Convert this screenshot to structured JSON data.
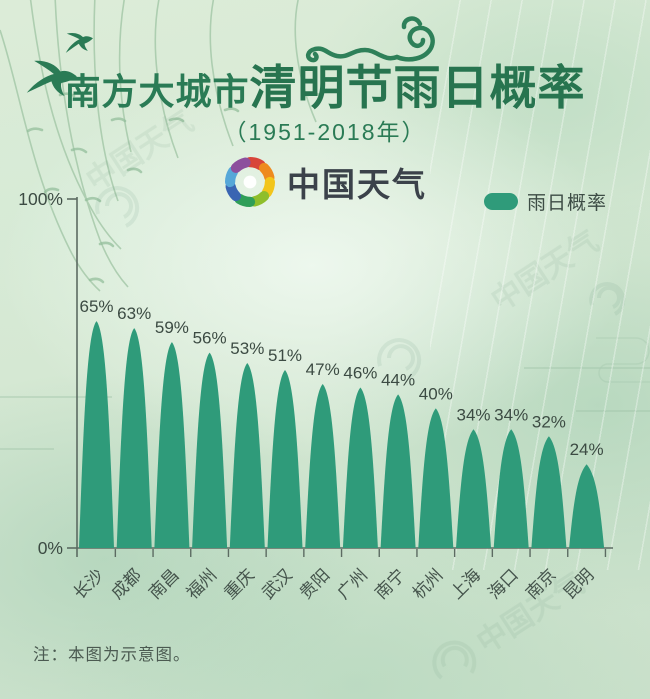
{
  "title": {
    "prefix": "南方大城市",
    "emphasis": "清明节雨日概率"
  },
  "subtitle": "（1951-2018年）",
  "brand": {
    "name": "中国天气",
    "watermark": "中国天气"
  },
  "legend": {
    "label": "雨日概率",
    "swatch_color": "#2f9b7a"
  },
  "note": "注：本图为示意图。",
  "chart_data": {
    "type": "bar",
    "title": "南方大城市清明节雨日概率",
    "subtitle": "（1951-2018年）",
    "categories": [
      "长沙",
      "成都",
      "南昌",
      "福州",
      "重庆",
      "武汉",
      "贵阳",
      "广州",
      "南宁",
      "杭州",
      "上海",
      "海口",
      "南京",
      "昆明"
    ],
    "values": [
      65,
      63,
      59,
      56,
      53,
      51,
      47,
      46,
      44,
      40,
      34,
      34,
      32,
      24
    ],
    "unit": "%",
    "ylim": [
      0,
      100
    ],
    "yticks": [
      "0%",
      "100%"
    ],
    "grid": false,
    "legend": [
      "雨日概率"
    ],
    "legend_position": "top-right",
    "bar_color": "#2f9b7a",
    "value_labels": true
  },
  "colors": {
    "title_green": "#2a7b55",
    "bar_teal": "#2f9b7a",
    "axis_gray": "#5c6b62",
    "text_dark": "#3c4b43"
  }
}
